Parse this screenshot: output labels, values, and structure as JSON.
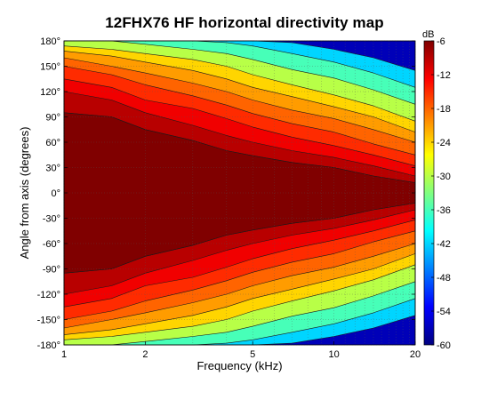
{
  "chart_data": {
    "type": "heatmap",
    "title": "12FHX76 HF horizontal directivity map",
    "xlabel": "Frequency (kHz)",
    "ylabel": "Angle from axis (degrees)",
    "colorbar_label": "dB",
    "x_scale": "log",
    "xlim": [
      1,
      20
    ],
    "ylim": [
      -180,
      180
    ],
    "zlim": [
      -60,
      -6
    ],
    "x_ticks": [
      1,
      2,
      5,
      10,
      20
    ],
    "x_tick_labels": [
      "1",
      "2",
      "5",
      "10",
      "20"
    ],
    "y_ticks": [
      180,
      150,
      120,
      90,
      60,
      30,
      0,
      -30,
      -60,
      -90,
      -120,
      -150,
      -180
    ],
    "y_tick_labels": [
      "180°",
      "150°",
      "120°",
      "90°",
      "60°",
      "30°",
      "0°",
      "-30°",
      "-60°",
      "-90°",
      "-120°",
      "-150°",
      "-180°"
    ],
    "colorbar_ticks": [
      -6,
      -12,
      -18,
      -24,
      -30,
      -36,
      -42,
      -48,
      -54,
      -60
    ],
    "colorbar_tick_labels": [
      "-6",
      "-12",
      "-18",
      "-24",
      "-30",
      "-36",
      "-42",
      "-48",
      "-54",
      "-60"
    ],
    "contour_step": 3,
    "colormap": [
      "#000080",
      "#0000ff",
      "#0080ff",
      "#00ffff",
      "#80ff80",
      "#ffff00",
      "#ff8000",
      "#ff0000",
      "#800000"
    ],
    "grid": true,
    "contour_levels_db": {
      "frequency_khz": [
        1,
        1.5,
        2,
        3,
        4,
        5,
        7,
        10,
        14,
        20
      ],
      "series": [
        {
          "name": "-6",
          "angle_deg": [
            95,
            90,
            75,
            62,
            50,
            44,
            36,
            30,
            20,
            12
          ]
        },
        {
          "name": "-9",
          "angle_deg": [
            120,
            110,
            95,
            80,
            68,
            60,
            50,
            42,
            32,
            20
          ]
        },
        {
          "name": "-12",
          "angle_deg": [
            135,
            125,
            110,
            100,
            88,
            78,
            66,
            56,
            45,
            32
          ]
        },
        {
          "name": "-15",
          "angle_deg": [
            150,
            140,
            128,
            115,
            104,
            94,
            82,
            72,
            58,
            45
          ]
        },
        {
          "name": "-18",
          "angle_deg": [
            160,
            150,
            142,
            130,
            120,
            110,
            98,
            88,
            75,
            60
          ]
        },
        {
          "name": "-21",
          "angle_deg": [
            168,
            162,
            155,
            145,
            135,
            125,
            114,
            102,
            90,
            72
          ]
        },
        {
          "name": "-24",
          "angle_deg": [
            174,
            170,
            165,
            158,
            150,
            140,
            128,
            116,
            103,
            85
          ]
        },
        {
          "name": "-30",
          "angle_deg": [
            180,
            180,
            176,
            170,
            165,
            158,
            146,
            136,
            122,
            105
          ]
        },
        {
          "name": "-36",
          "angle_deg": [
            180,
            180,
            180,
            180,
            178,
            174,
            165,
            155,
            142,
            125
          ]
        },
        {
          "name": "-42",
          "angle_deg": [
            180,
            180,
            180,
            180,
            180,
            180,
            178,
            170,
            160,
            145
          ]
        }
      ]
    }
  }
}
